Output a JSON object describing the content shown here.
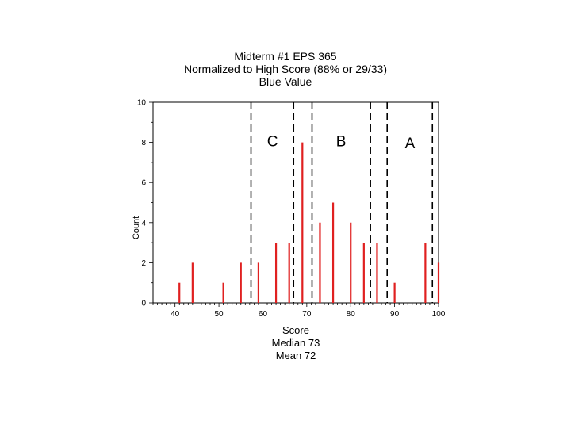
{
  "chart_data": {
    "type": "bar",
    "title": [
      "Midterm #1 EPS 365",
      "Normalized to High Score (88% or 29/33)",
      "Blue Value"
    ],
    "xlabel": [
      "Score",
      "Median 73",
      "Mean 72"
    ],
    "ylabel": "Count",
    "xlim": [
      35,
      100
    ],
    "ylim": [
      0,
      10
    ],
    "xticks": [
      40,
      50,
      60,
      70,
      80,
      90,
      100
    ],
    "yticks": [
      0,
      2,
      4,
      6,
      8,
      10
    ],
    "grid": false,
    "bar_color": "#e02020",
    "divider_color": "#000000",
    "bars": [
      {
        "x": 41,
        "y": 1
      },
      {
        "x": 44,
        "y": 2
      },
      {
        "x": 51,
        "y": 1
      },
      {
        "x": 55,
        "y": 2
      },
      {
        "x": 59,
        "y": 2
      },
      {
        "x": 63,
        "y": 3
      },
      {
        "x": 66,
        "y": 3
      },
      {
        "x": 69,
        "y": 8
      },
      {
        "x": 73,
        "y": 4
      },
      {
        "x": 76,
        "y": 5
      },
      {
        "x": 80,
        "y": 4
      },
      {
        "x": 83,
        "y": 3
      },
      {
        "x": 86,
        "y": 3
      },
      {
        "x": 90,
        "y": 1
      },
      {
        "x": 97,
        "y": 3
      },
      {
        "x": 100,
        "y": 2
      }
    ],
    "dividers": [
      57.3,
      67.0,
      71.2,
      84.5,
      88.3,
      98.6
    ],
    "zone_labels": [
      {
        "label": "C",
        "x": 62.2,
        "y": 7.8
      },
      {
        "label": "B",
        "x": 77.8,
        "y": 7.8
      },
      {
        "label": "A",
        "x": 93.5,
        "y": 7.7
      }
    ]
  }
}
